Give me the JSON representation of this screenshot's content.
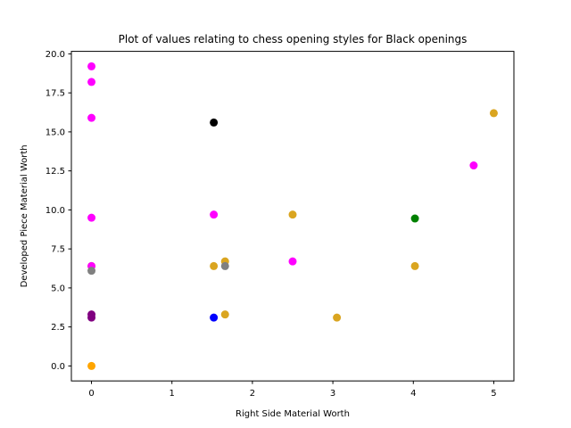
{
  "chart_data": {
    "type": "scatter",
    "title": "Plot of values relating to chess opening styles for Black openings",
    "xlabel": "Right Side Material Worth",
    "ylabel": "Developed Piece Material Worth",
    "xlim": [
      -0.25,
      5.25
    ],
    "ylim": [
      -0.96,
      20.16
    ],
    "xticks": [
      0,
      1,
      2,
      3,
      4,
      5
    ],
    "xtick_labels": [
      "0",
      "1",
      "2",
      "3",
      "4",
      "5"
    ],
    "yticks": [
      0.0,
      2.5,
      5.0,
      7.5,
      10.0,
      12.5,
      15.0,
      17.5,
      20.0
    ],
    "ytick_labels": [
      "0.0",
      "2.5",
      "5.0",
      "7.5",
      "10.0",
      "12.5",
      "15.0",
      "17.5",
      "20.0"
    ],
    "grid": false,
    "points": [
      {
        "x": 0.0,
        "y": 19.2,
        "color": "#ff00ff"
      },
      {
        "x": 0.0,
        "y": 18.2,
        "color": "#ff00ff"
      },
      {
        "x": 0.0,
        "y": 15.9,
        "color": "#ff00ff"
      },
      {
        "x": 0.0,
        "y": 9.5,
        "color": "#ff00ff"
      },
      {
        "x": 0.0,
        "y": 6.4,
        "color": "#daa520"
      },
      {
        "x": 0.0,
        "y": 6.4,
        "color": "#ff00ff"
      },
      {
        "x": 0.0,
        "y": 6.1,
        "color": "#808080"
      },
      {
        "x": 0.0,
        "y": 3.3,
        "color": "#800080"
      },
      {
        "x": 0.0,
        "y": 3.1,
        "color": "#800080"
      },
      {
        "x": 0.0,
        "y": 0.0,
        "color": "#ffa500"
      },
      {
        "x": 1.52,
        "y": 15.6,
        "color": "#000000"
      },
      {
        "x": 1.52,
        "y": 9.7,
        "color": "#ff00ff"
      },
      {
        "x": 1.52,
        "y": 6.4,
        "color": "#daa520"
      },
      {
        "x": 1.52,
        "y": 3.1,
        "color": "#0000ff"
      },
      {
        "x": 1.66,
        "y": 6.7,
        "color": "#daa520"
      },
      {
        "x": 1.66,
        "y": 6.4,
        "color": "#808080"
      },
      {
        "x": 1.66,
        "y": 3.3,
        "color": "#daa520"
      },
      {
        "x": 2.5,
        "y": 9.7,
        "color": "#daa520"
      },
      {
        "x": 2.5,
        "y": 6.7,
        "color": "#ff00ff"
      },
      {
        "x": 3.05,
        "y": 3.1,
        "color": "#daa520"
      },
      {
        "x": 4.02,
        "y": 9.45,
        "color": "#008000"
      },
      {
        "x": 4.02,
        "y": 6.4,
        "color": "#daa520"
      },
      {
        "x": 4.75,
        "y": 12.85,
        "color": "#ff00ff"
      },
      {
        "x": 5.0,
        "y": 16.2,
        "color": "#daa520"
      }
    ]
  }
}
